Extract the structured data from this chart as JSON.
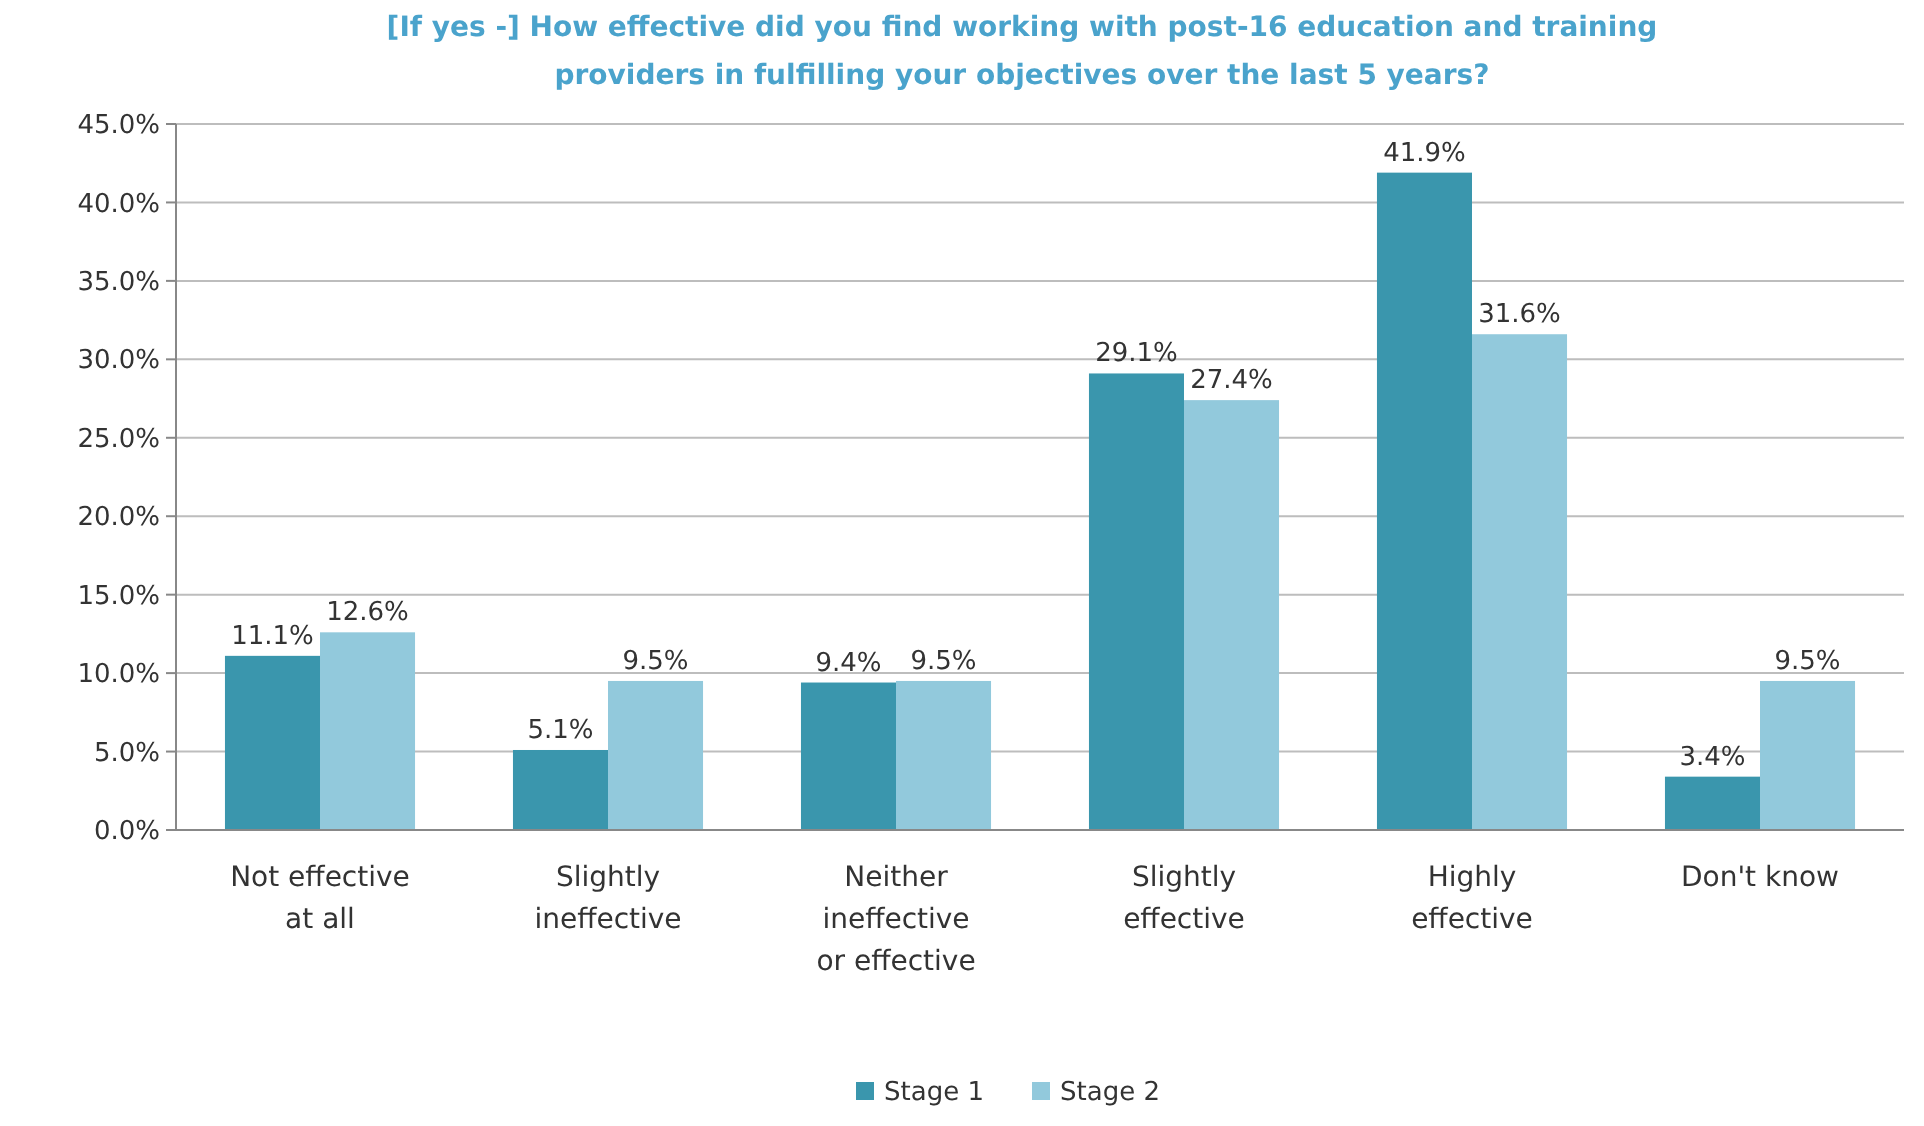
{
  "chart_data": {
    "type": "bar",
    "title": "[If yes -] How effective did you find working with post-16 education and training providers in fulfilling your objectives over the last 5 years?",
    "categories": [
      "Not effective at all",
      "Slightly ineffective",
      "Neither ineffective or effective",
      "Slightly effective",
      "Highly effective",
      "Don't know"
    ],
    "series": [
      {
        "name": "Stage 1",
        "color": "#3a96ad",
        "values": [
          11.1,
          5.1,
          9.4,
          29.1,
          41.9,
          3.4
        ],
        "value_labels": [
          "11.1%",
          "5.1%",
          "9.4%",
          "29.1%",
          "41.9%",
          "3.4%"
        ]
      },
      {
        "name": "Stage 2",
        "color": "#92c9dc",
        "values": [
          12.6,
          9.5,
          9.5,
          27.4,
          31.6,
          9.5
        ],
        "value_labels": [
          "12.6%",
          "9.5%",
          "9.5%",
          "27.4%",
          "31.6%",
          "9.5%"
        ]
      }
    ],
    "ylim": [
      0,
      45
    ],
    "yticks": [
      {
        "value": 0,
        "label": "0.0%"
      },
      {
        "value": 5,
        "label": "5.0%"
      },
      {
        "value": 10,
        "label": "10.0%"
      },
      {
        "value": 15,
        "label": "15.0%"
      },
      {
        "value": 20,
        "label": "20.0%"
      },
      {
        "value": 25,
        "label": "25.0%"
      },
      {
        "value": 30,
        "label": "30.0%"
      },
      {
        "value": 35,
        "label": "35.0%"
      },
      {
        "value": 40,
        "label": "40.0%"
      },
      {
        "value": 45,
        "label": "45.0%"
      }
    ],
    "grid": "y",
    "legend": "bottom"
  }
}
